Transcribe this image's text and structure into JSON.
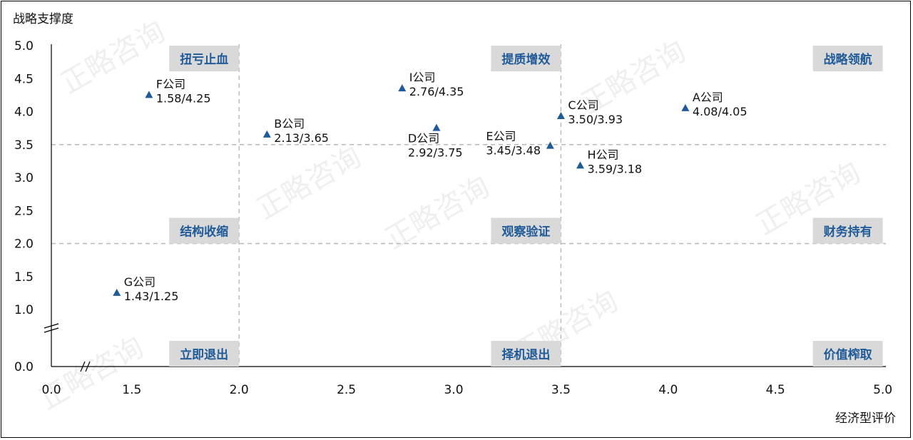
{
  "chart_data": {
    "type": "scatter",
    "title": "",
    "ylabel": "战略支撑度",
    "xlabel": "经济型评价",
    "xlim": [
      1.0,
      5.0
    ],
    "ylim": [
      1.0,
      5.0
    ],
    "axis_break": {
      "x_origin_label": "0.0",
      "y_origin_label": "0.0"
    },
    "x_ticks": [
      "1.5",
      "2.0",
      "2.5",
      "3.0",
      "3.5",
      "4.0",
      "4.5",
      "5.0"
    ],
    "y_ticks": [
      "1.0",
      "1.5",
      "2.0",
      "2.5",
      "3.0",
      "3.5",
      "4.0",
      "4.5",
      "5.0"
    ],
    "reference_lines": {
      "x": [
        2.0,
        3.5
      ],
      "y": [
        2.0,
        3.5
      ]
    },
    "quadrant_labels": [
      {
        "text": "扭亏止血",
        "x": 2.0,
        "y": 5.0
      },
      {
        "text": "提质增效",
        "x": 3.5,
        "y": 5.0
      },
      {
        "text": "战略领航",
        "x": 5.0,
        "y": 5.0
      },
      {
        "text": "结构收缩",
        "x": 2.0,
        "y": 2.0
      },
      {
        "text": "观察验证",
        "x": 3.5,
        "y": 2.0
      },
      {
        "text": "财务持有",
        "x": 5.0,
        "y": 2.0
      },
      {
        "text": "立即退出",
        "x": 2.0,
        "y": 0.0
      },
      {
        "text": "择机退出",
        "x": 3.5,
        "y": 0.0
      },
      {
        "text": "价值榨取",
        "x": 5.0,
        "y": 0.0
      }
    ],
    "points": [
      {
        "name": "A公司",
        "value": "4.08/4.05",
        "x": 4.08,
        "y": 4.05
      },
      {
        "name": "B公司",
        "value": "2.13/3.65",
        "x": 2.13,
        "y": 3.65
      },
      {
        "name": "C公司",
        "value": "3.50/3.93",
        "x": 3.5,
        "y": 3.93
      },
      {
        "name": "D公司",
        "value": "2.92/3.75",
        "x": 2.92,
        "y": 3.75
      },
      {
        "name": "E公司",
        "value": "3.45/3.48",
        "x": 3.45,
        "y": 3.48
      },
      {
        "name": "F公司",
        "value": "1.58/4.25",
        "x": 1.58,
        "y": 4.25
      },
      {
        "name": "G公司",
        "value": "1.43/1.25",
        "x": 1.43,
        "y": 1.25
      },
      {
        "name": "H公司",
        "value": "3.59/3.18",
        "x": 3.59,
        "y": 3.18
      },
      {
        "name": "I公司",
        "value": "2.76/4.35",
        "x": 2.76,
        "y": 4.35
      }
    ],
    "marker_color": "#1f5a99",
    "label_color": "#1f5a99",
    "grid": false
  },
  "watermark": "正略咨询"
}
